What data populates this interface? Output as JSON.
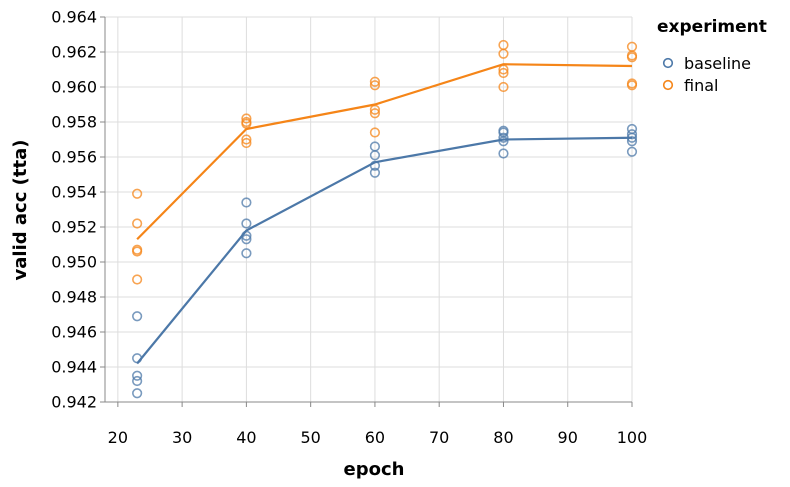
{
  "chart_data": {
    "type": "scatter",
    "xlabel": "epoch",
    "ylabel": "valid acc (tta)",
    "xlim": [
      18,
      100
    ],
    "ylim": [
      0.942,
      0.964
    ],
    "x_ticks": [
      20,
      30,
      40,
      50,
      60,
      70,
      80,
      90,
      100
    ],
    "y_ticks": [
      0.942,
      0.944,
      0.946,
      0.948,
      0.95,
      0.952,
      0.954,
      0.956,
      0.958,
      0.96,
      0.962,
      0.964
    ],
    "y_tick_labels": [
      "0.942",
      "0.944",
      "0.946",
      "0.948",
      "0.950",
      "0.952",
      "0.954",
      "0.956",
      "0.958",
      "0.960",
      "0.962",
      "0.964"
    ],
    "grid": true,
    "legend": {
      "title": "experiment",
      "position": "top-right",
      "items": [
        {
          "label": "baseline",
          "color": "#4c78a8"
        },
        {
          "label": "final",
          "color": "#f58518"
        }
      ]
    },
    "series": [
      {
        "name": "baseline",
        "color": "#4c78a8",
        "points": [
          {
            "x": 23,
            "y": 0.9425
          },
          {
            "x": 23,
            "y": 0.9432
          },
          {
            "x": 23,
            "y": 0.9435
          },
          {
            "x": 23,
            "y": 0.9445
          },
          {
            "x": 23,
            "y": 0.9469
          },
          {
            "x": 40,
            "y": 0.9505
          },
          {
            "x": 40,
            "y": 0.9513
          },
          {
            "x": 40,
            "y": 0.9515
          },
          {
            "x": 40,
            "y": 0.9522
          },
          {
            "x": 40,
            "y": 0.9534
          },
          {
            "x": 60,
            "y": 0.9551
          },
          {
            "x": 60,
            "y": 0.9555
          },
          {
            "x": 60,
            "y": 0.9561
          },
          {
            "x": 60,
            "y": 0.9566
          },
          {
            "x": 80,
            "y": 0.9562
          },
          {
            "x": 80,
            "y": 0.9569
          },
          {
            "x": 80,
            "y": 0.9571
          },
          {
            "x": 80,
            "y": 0.9574
          },
          {
            "x": 80,
            "y": 0.9575
          },
          {
            "x": 100,
            "y": 0.9563
          },
          {
            "x": 100,
            "y": 0.9569
          },
          {
            "x": 100,
            "y": 0.9571
          },
          {
            "x": 100,
            "y": 0.9573
          },
          {
            "x": 100,
            "y": 0.9576
          }
        ],
        "mean_line": [
          {
            "x": 23,
            "y": 0.9442
          },
          {
            "x": 40,
            "y": 0.9518
          },
          {
            "x": 60,
            "y": 0.9557
          },
          {
            "x": 80,
            "y": 0.957
          },
          {
            "x": 100,
            "y": 0.9571
          }
        ]
      },
      {
        "name": "final",
        "color": "#f58518",
        "points": [
          {
            "x": 23,
            "y": 0.949
          },
          {
            "x": 23,
            "y": 0.9506
          },
          {
            "x": 23,
            "y": 0.9507
          },
          {
            "x": 23,
            "y": 0.9522
          },
          {
            "x": 23,
            "y": 0.9539
          },
          {
            "x": 40,
            "y": 0.9568
          },
          {
            "x": 40,
            "y": 0.957
          },
          {
            "x": 40,
            "y": 0.9579
          },
          {
            "x": 40,
            "y": 0.958
          },
          {
            "x": 40,
            "y": 0.9582
          },
          {
            "x": 60,
            "y": 0.9574
          },
          {
            "x": 60,
            "y": 0.9585
          },
          {
            "x": 60,
            "y": 0.9587
          },
          {
            "x": 60,
            "y": 0.9601
          },
          {
            "x": 60,
            "y": 0.9603
          },
          {
            "x": 80,
            "y": 0.96
          },
          {
            "x": 80,
            "y": 0.9608
          },
          {
            "x": 80,
            "y": 0.961
          },
          {
            "x": 80,
            "y": 0.9619
          },
          {
            "x": 80,
            "y": 0.9624
          },
          {
            "x": 100,
            "y": 0.9601
          },
          {
            "x": 100,
            "y": 0.9602
          },
          {
            "x": 100,
            "y": 0.9617
          },
          {
            "x": 100,
            "y": 0.9618
          },
          {
            "x": 100,
            "y": 0.9623
          }
        ],
        "mean_line": [
          {
            "x": 23,
            "y": 0.9513
          },
          {
            "x": 40,
            "y": 0.9576
          },
          {
            "x": 60,
            "y": 0.959
          },
          {
            "x": 80,
            "y": 0.9613
          },
          {
            "x": 100,
            "y": 0.9612
          }
        ]
      }
    ]
  }
}
